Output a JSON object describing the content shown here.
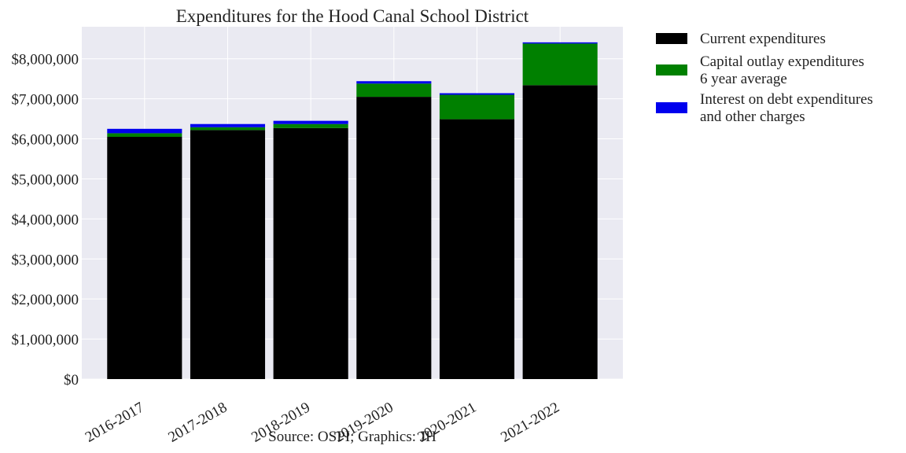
{
  "chart_data": {
    "type": "bar",
    "stacked": true,
    "title": "Expenditures for the Hood Canal School District",
    "xlabel": "",
    "ylabel": "",
    "source": "Source: OSPI; Graphics: JH",
    "categories": [
      "2016-2017",
      "2017-2018",
      "2018-2019",
      "2019-2020",
      "2020-2021",
      "2021-2022"
    ],
    "series": [
      {
        "name": "Current expenditures",
        "color": "#000000",
        "values": [
          6050000,
          6220000,
          6270000,
          7050000,
          6490000,
          7340000
        ]
      },
      {
        "name": "Capital outlay expenditures\n6 year average",
        "color": "#008000",
        "values": [
          90000,
          70000,
          100000,
          330000,
          610000,
          1040000
        ]
      },
      {
        "name": "Interest on debt expenditures\nand other charges",
        "color": "#0000ee",
        "values": [
          110000,
          80000,
          80000,
          60000,
          40000,
          30000
        ]
      }
    ],
    "ylim": [
      0,
      8800000
    ],
    "yticks": [
      0,
      1000000,
      2000000,
      3000000,
      4000000,
      5000000,
      6000000,
      7000000,
      8000000
    ],
    "ytick_labels": [
      "$0",
      "$1,000,000",
      "$2,000,000",
      "$3,000,000",
      "$4,000,000",
      "$5,000,000",
      "$6,000,000",
      "$7,000,000",
      "$8,000,000"
    ],
    "grid": true,
    "legend_position": "outside-right-top",
    "plot_background": "#eaeaf2"
  }
}
